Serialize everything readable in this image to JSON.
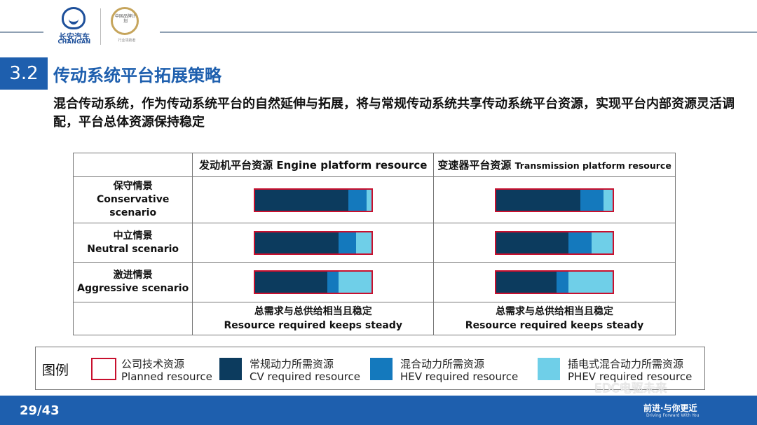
{
  "logo": {
    "brand_cn": "长安汽车",
    "brand_en": "CHANGAN",
    "badge_text": "中国品牌计划",
    "badge_foot": "行业领航者"
  },
  "section": {
    "number": "3.2",
    "title": "传动系统平台拓展策略"
  },
  "description": "混合传动系统，作为传动系统平台的自然延伸与拓展，将与常规传动系统共享传动系统平台资源，实现平台内部资源灵活调配，平台总体资源保持稳定",
  "table": {
    "col_headers": [
      {
        "cn": "发动机平台资源",
        "en": "Engine platform resource"
      },
      {
        "cn": "变速器平台资源",
        "en": "Transmission platform resource"
      }
    ],
    "rows": [
      {
        "cn": "保守情景",
        "en": "Conservative scenario"
      },
      {
        "cn": "中立情景",
        "en": "Neutral scenario"
      },
      {
        "cn": "激进情景",
        "en": "Aggressive scenario"
      }
    ],
    "footer": {
      "cn": "总需求与总供给相当且稳定",
      "en": "Resource required keeps steady"
    }
  },
  "bars": [
    [
      [
        0.8,
        0.16,
        0.04
      ],
      [
        0.72,
        0.2,
        0.1
      ]
    ],
    [
      [
        0.72,
        0.15,
        0.15
      ],
      [
        0.62,
        0.2,
        0.2
      ]
    ],
    [
      [
        0.62,
        0.1,
        0.3
      ],
      [
        0.52,
        0.1,
        0.42
      ]
    ]
  ],
  "legend": {
    "title": "图例",
    "items": [
      {
        "cn": "公司技术资源",
        "en": "Planned resource"
      },
      {
        "cn": "常规动力所需资源",
        "en": "CV required resource"
      },
      {
        "cn": "混合动力所需资源",
        "en": "HEV required resource"
      },
      {
        "cn": "插电式混合动力所需资源",
        "en": "PHEV required resource"
      }
    ]
  },
  "colors": {
    "outline": "#c8102e",
    "cv": "#0c3b5e",
    "hev": "#1479bd",
    "phev": "#6fcfe8",
    "brand": "#1e5fae"
  },
  "page": "29/43",
  "slogan": {
    "cn": "前进·与你更近",
    "en": "Driving Forward With You"
  },
  "watermark": "EDC电驱未来"
}
